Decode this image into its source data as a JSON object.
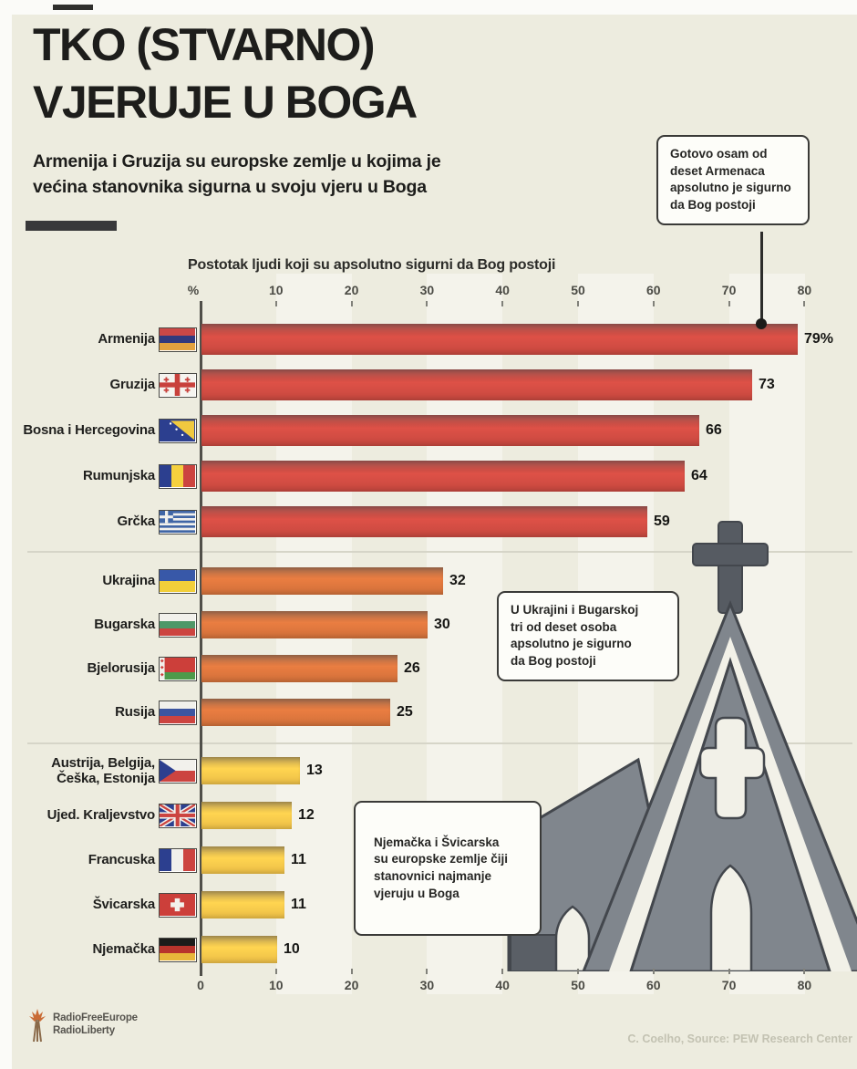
{
  "header": {
    "title": "TKO (STVARNO)\nVJERUJE U BOGA",
    "subtitle": "Armenija i Gruzija su europske zemlje u kojima je\nvećina stanovnika sigurna u svoju vjeru u Boga"
  },
  "chart_data": {
    "type": "bar",
    "orientation": "horizontal",
    "title": "Postotak ljudi koji su apsolutno sigurni da Bog postoji",
    "xlim": [
      0,
      80
    ],
    "x_ticks": [
      0,
      10,
      20,
      30,
      40,
      50,
      60,
      70,
      80
    ],
    "axis_top_labels": [
      "%",
      "10",
      "20",
      "30",
      "40",
      "50",
      "60",
      "70",
      "80"
    ],
    "axis_bottom_labels": [
      "0",
      "10",
      "20",
      "30",
      "40",
      "50",
      "60",
      "70",
      "80"
    ],
    "grid": false,
    "categories": [
      "Armenija",
      "Gruzija",
      "Bosna i Hercegovina",
      "Rumunjska",
      "Grčka",
      "Ukrajina",
      "Bugarska",
      "Bjelorusija",
      "Rusija",
      "Austrija, Belgija, Češka, Estonija",
      "Ujed. Kraljevstvo",
      "Francuska",
      "Švicarska",
      "Njemačka"
    ],
    "values": [
      79,
      73,
      66,
      64,
      59,
      32,
      30,
      26,
      25,
      13,
      12,
      11,
      11,
      10
    ],
    "series": [
      {
        "name": "high-belief",
        "color": "#c6483f",
        "bars": [
          {
            "category": "Armenija",
            "flag": "armenia",
            "value": 79,
            "label": "79%"
          },
          {
            "category": "Gruzija",
            "flag": "georgia",
            "value": 73,
            "label": "73"
          },
          {
            "category": "Bosna i Hercegovina",
            "flag": "bosnia",
            "value": 66,
            "label": "66"
          },
          {
            "category": "Rumunjska",
            "flag": "romania",
            "value": 64,
            "label": "64"
          },
          {
            "category": "Grčka",
            "flag": "greece",
            "value": 59,
            "label": "59"
          }
        ]
      },
      {
        "name": "mid-belief",
        "color": "#d1703a",
        "bars": [
          {
            "category": "Ukrajina",
            "flag": "ukraine",
            "value": 32,
            "label": "32"
          },
          {
            "category": "Bugarska",
            "flag": "bulgaria",
            "value": 30,
            "label": "30"
          },
          {
            "category": "Bjelorusija",
            "flag": "belarus",
            "value": 26,
            "label": "26"
          },
          {
            "category": "Rusija",
            "flag": "russia",
            "value": 25,
            "label": "25"
          }
        ]
      },
      {
        "name": "low-belief",
        "color": "#ecbe47",
        "bars": [
          {
            "category": "Austrija, Belgija, Češka, Estonija",
            "flag": "czechia",
            "value": 13,
            "label": "13"
          },
          {
            "category": "Ujed. Kraljevstvo",
            "flag": "uk",
            "value": 12,
            "label": "12"
          },
          {
            "category": "Francuska",
            "flag": "france",
            "value": 11,
            "label": "11"
          },
          {
            "category": "Švicarska",
            "flag": "switzerland",
            "value": 11,
            "label": "11"
          },
          {
            "category": "Njemačka",
            "flag": "germany",
            "value": 10,
            "label": "10"
          }
        ]
      }
    ]
  },
  "callouts": [
    {
      "text": "Gotovo osam od\ndeset Armenaca\napsolutno je sigurno\nda Bog postoji"
    },
    {
      "text": "U Ukrajini i Bugarskoj\ntri od deset osoba\napsolutno je sigurno\nda Bog postoji"
    },
    {
      "text": "Njemačka i Švicarska\nsu europske zemlje čiji\nstanovnici najmanje\nvjeruju u Boga"
    }
  ],
  "footer": {
    "logo_text": "RadioFreeEurope\nRadioLiberty",
    "credit": "C. Coelho, Source: PEW Research Center"
  },
  "colors": {
    "background": "#edecdf",
    "bar_red": "#c6483f",
    "bar_orange": "#d1703a",
    "bar_yellow": "#ecbe47",
    "church_gray": "#80868d",
    "church_outline": "#43474d",
    "text": "#1d1d1b"
  }
}
